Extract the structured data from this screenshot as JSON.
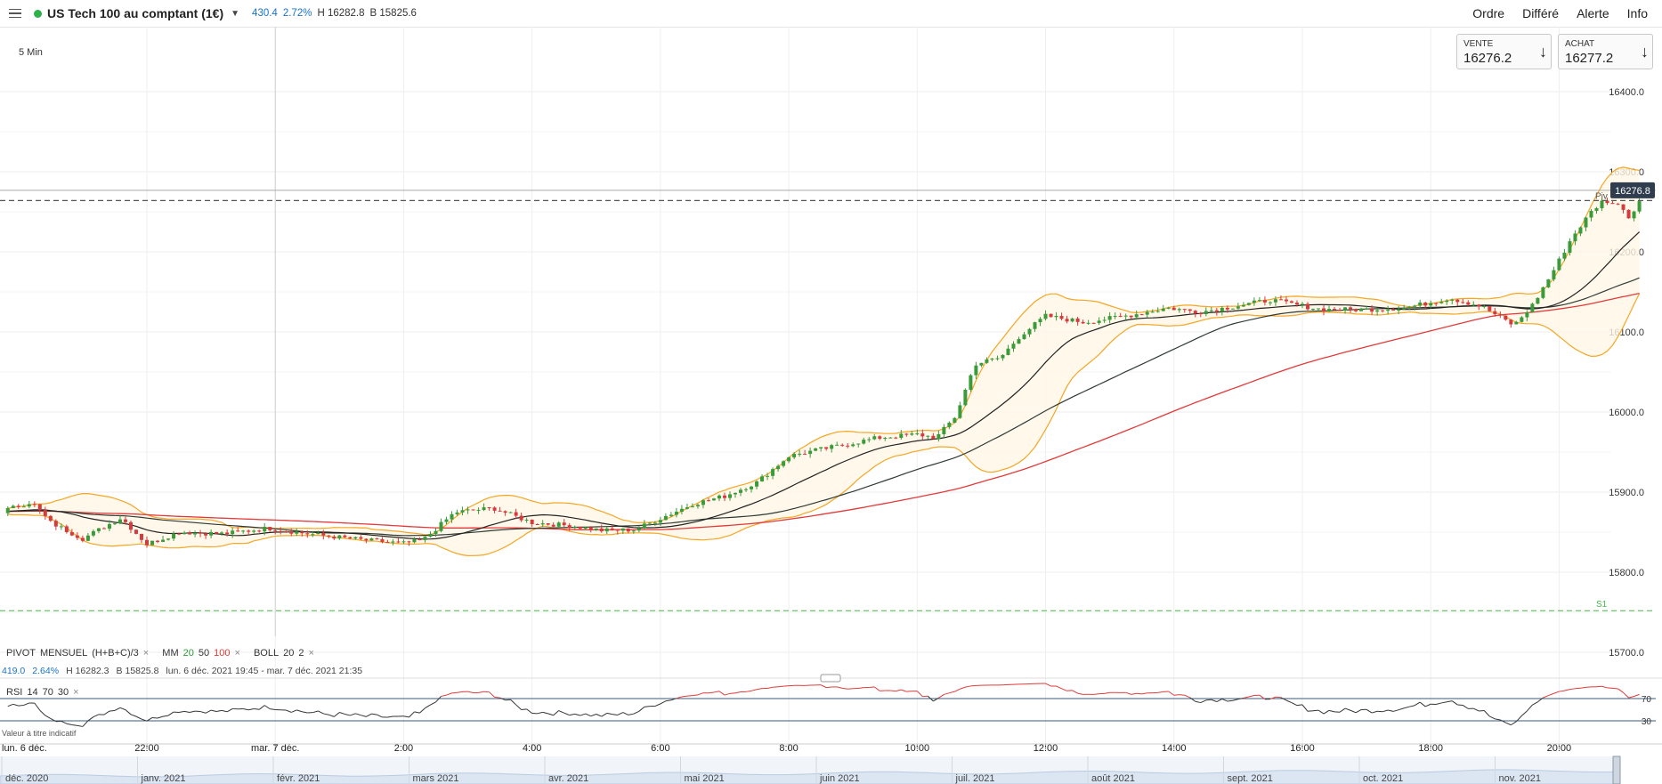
{
  "header": {
    "title": "US Tech 100 au comptant (1€)",
    "change": "430.4",
    "change_pct": "2.72%",
    "high": "H 16282.8",
    "low": "B 15825.6",
    "nav": [
      "Ordre",
      "Différé",
      "Alerte",
      "Info"
    ]
  },
  "timeframe": "5 Min",
  "quotes": {
    "sell_label": "VENTE",
    "sell_value": "16276.2",
    "buy_label": "ACHAT",
    "buy_value": "16277.2"
  },
  "indicators": {
    "pivot": "PIVOT",
    "pivot_type": "MENSUEL",
    "pivot_formula": "(H+B+C)/3",
    "mm": "MM",
    "mm_20": "20",
    "mm_50": "50",
    "mm_100": "100",
    "boll": "BOLL",
    "boll_p1": "20",
    "boll_p2": "2",
    "rsi": "RSI",
    "rsi_14": "14",
    "rsi_70": "70",
    "rsi_30": "30",
    "close_symbol": "×"
  },
  "info_line": {
    "change": "419.0",
    "pct": "2.64%",
    "high": "H 16282.3",
    "low": "B 15825.8",
    "range": "lun. 6 déc. 2021 19:45 - mar. 7 déc. 2021 21:35"
  },
  "disclaimer": "Valeur à titre indicatif",
  "colors": {
    "up": "#3a9b3a",
    "down": "#d63a3a",
    "ma20": "#222222",
    "ma50": "#2f3a35",
    "ma100": "#e23a3a",
    "boll": "#f5a623",
    "pivot_s1": "#44b84a"
  },
  "chart_data": {
    "type": "candlestick",
    "price_axis": {
      "ticks": [
        "16400.0",
        "16300.0",
        "16200.0",
        "16100.0",
        "16000.0",
        "15900.0",
        "15800.0",
        "15700.0"
      ],
      "range": [
        15675,
        16485
      ]
    },
    "time_axis": [
      "lun. 6 déc.",
      "22:00",
      "mar. 7 déc.",
      "2:00",
      "4:00",
      "6:00",
      "8:00",
      "10:00",
      "12:00",
      "14:00",
      "16:00",
      "18:00",
      "20:00"
    ],
    "last_price_label": "16276.8",
    "last_price": 16276.8,
    "pivot": {
      "label": "Piv",
      "value": 16264
    },
    "s1": {
      "label": "S1",
      "value": 15752
    },
    "rsi_levels": [
      "70",
      "30"
    ],
    "navigator_labels": [
      "déc. 2020",
      "janv. 2021",
      "févr. 2021",
      "mars 2021",
      "avr. 2021",
      "mai 2021",
      "juin 2021",
      "juil. 2021",
      "août 2021",
      "sept. 2021",
      "oct. 2021",
      "nov. 2021"
    ],
    "close_path": [
      [
        19.75,
        15876
      ],
      [
        20.2,
        15888
      ],
      [
        20.5,
        15862
      ],
      [
        21.0,
        15842
      ],
      [
        21.6,
        15868
      ],
      [
        22.0,
        15835
      ],
      [
        22.5,
        15850
      ],
      [
        23.2,
        15848
      ],
      [
        23.9,
        15855
      ],
      [
        24.5,
        15848
      ],
      [
        25.4,
        15840
      ],
      [
        26.0,
        15836
      ],
      [
        26.3,
        15840
      ],
      [
        26.8,
        15875
      ],
      [
        27.4,
        15880
      ],
      [
        28.0,
        15862
      ],
      [
        28.6,
        15858
      ],
      [
        29.1,
        15852
      ],
      [
        29.6,
        15853
      ],
      [
        30.5,
        15885
      ],
      [
        31.0,
        15895
      ],
      [
        31.5,
        15912
      ],
      [
        32.0,
        15945
      ],
      [
        32.4,
        15952
      ],
      [
        32.8,
        15958
      ],
      [
        33.4,
        15968
      ],
      [
        34.0,
        15972
      ],
      [
        34.3,
        15968
      ],
      [
        34.6,
        15995
      ],
      [
        34.9,
        16060
      ],
      [
        35.3,
        16068
      ],
      [
        35.6,
        16095
      ],
      [
        36.0,
        16120
      ],
      [
        36.6,
        16112
      ],
      [
        37.4,
        16122
      ],
      [
        37.9,
        16130
      ],
      [
        38.4,
        16125
      ],
      [
        38.8,
        16130
      ],
      [
        39.5,
        16140
      ],
      [
        40.3,
        16128
      ],
      [
        41.0,
        16128
      ],
      [
        41.6,
        16130
      ],
      [
        42.3,
        16142
      ],
      [
        42.8,
        16132
      ],
      [
        43.0,
        16122
      ],
      [
        43.3,
        16108
      ],
      [
        43.6,
        16135
      ],
      [
        43.9,
        16175
      ],
      [
        44.2,
        16218
      ],
      [
        44.5,
        16250
      ],
      [
        44.7,
        16265
      ],
      [
        45.0,
        16255
      ],
      [
        45.1,
        16240
      ],
      [
        45.3,
        16275
      ]
    ]
  }
}
